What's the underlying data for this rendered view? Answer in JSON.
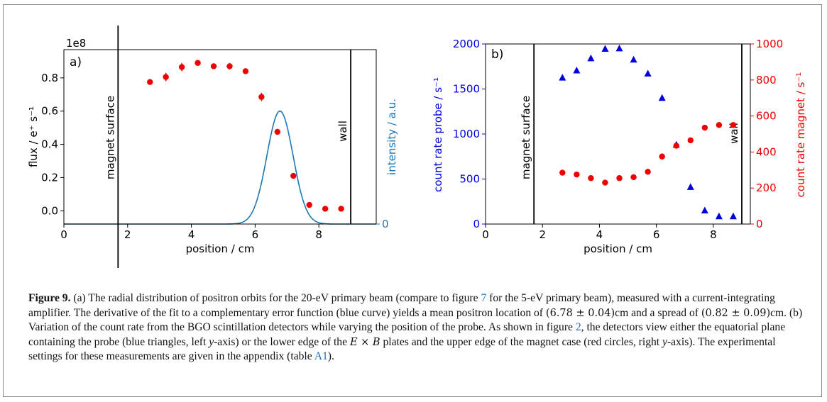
{
  "chart_data": [
    {
      "type": "scatter",
      "panel_label": "a)",
      "xlabel": "position / cm",
      "ylabel": "flux / e⁺ s⁻¹",
      "ylabel2": "intensity / a.u.",
      "y_offset_text": "1e8",
      "xlim": [
        0,
        9.8
      ],
      "ylim": [
        -0.08,
        0.97
      ],
      "x_ticks": [
        0,
        2,
        4,
        6,
        8
      ],
      "y_ticks": [
        0.0,
        0.2,
        0.4,
        0.6,
        0.8
      ],
      "y2_ticks": [
        0
      ],
      "vlines": [
        {
          "x": 1.7,
          "label": "magnet surface"
        },
        {
          "x": 9.0,
          "label": "wall"
        }
      ],
      "series": [
        {
          "marker": "circle",
          "color": "#ee0000",
          "x": [
            2.7,
            3.2,
            3.7,
            4.2,
            4.7,
            5.2,
            5.7,
            6.2,
            6.7,
            7.2,
            7.7,
            8.2,
            8.7
          ],
          "y": [
            0.775,
            0.805,
            0.865,
            0.89,
            0.87,
            0.87,
            0.84,
            0.685,
            0.475,
            0.21,
            0.035,
            0.012,
            0.012
          ],
          "yerr": [
            0.01,
            0.025,
            0.025,
            0.015,
            0.015,
            0.02,
            0.012,
            0.025,
            0.01,
            0.01,
            0.01,
            0.005,
            0.005
          ]
        },
        {
          "type": "line",
          "color": "#1f77b4",
          "mean": 6.78,
          "sigma": 0.41,
          "baseline": -0.08,
          "peak": 0.6
        }
      ]
    },
    {
      "type": "scatter",
      "panel_label": "b)",
      "xlabel": "position / cm",
      "ylabel": "count rate probe / s⁻¹",
      "ylabel2": "count rate magnet / s⁻¹",
      "xlim": [
        0,
        9.3
      ],
      "ylim": [
        0,
        2000
      ],
      "ylim2": [
        0,
        1000
      ],
      "x_ticks": [
        0,
        2,
        4,
        6,
        8
      ],
      "y_ticks": [
        0,
        500,
        1000,
        1500,
        2000
      ],
      "y2_ticks": [
        0,
        200,
        400,
        600,
        800,
        1000
      ],
      "vlines": [
        {
          "x": 1.7,
          "label": "magnet surface"
        },
        {
          "x": 9.0,
          "label": "wall"
        }
      ],
      "series": [
        {
          "axis": "left",
          "marker": "triangle",
          "color": "#0000dd",
          "x": [
            2.7,
            3.2,
            3.7,
            4.2,
            4.7,
            5.2,
            5.7,
            6.2,
            6.7,
            7.2,
            7.7,
            8.2,
            8.7
          ],
          "y": [
            1625,
            1705,
            1840,
            1945,
            1950,
            1825,
            1670,
            1400,
            880,
            410,
            150,
            85,
            85
          ]
        },
        {
          "axis": "right",
          "marker": "circle",
          "color": "#ee0000",
          "x": [
            2.7,
            3.2,
            3.7,
            4.2,
            4.7,
            5.2,
            5.7,
            6.2,
            6.7,
            7.2,
            7.7,
            8.2,
            8.7
          ],
          "y": [
            285,
            275,
            255,
            230,
            255,
            260,
            290,
            375,
            435,
            465,
            535,
            550,
            550
          ]
        }
      ]
    }
  ],
  "caption": {
    "label": "Figure 9.",
    "p1": " (a) The radial distribution of positron orbits for the 20-eV primary beam (compare to figure ",
    "ref1": "7",
    "p2": " for the 5-eV primary beam), measured with a current-integrating amplifier. The derivative of the fit to a complementary error function (blue curve) yields a mean positron location of ",
    "val1": "(6.78 ± 0.04)",
    "p3": "cm and a spread of ",
    "val2": "(0.82 ± 0.09)",
    "p4": "cm. (b) Variation of the count rate from the BGO scintillation detectors while varying the position of the probe. As shown in figure ",
    "ref2": "2",
    "p5": ", the detectors view either the equatorial plane containing the probe (blue triangles, left ",
    "yaxis1": "y",
    "p6": "-axis) or the lower edge of the ",
    "E": "E",
    "times": " × ",
    "B": "B",
    "p7": " plates and the upper edge of the magnet case (red circles, right ",
    "yaxis2": "y",
    "p8": "-axis). The experimental settings for these measurements are given in the appendix (table ",
    "ref3": "A1",
    "p9": ")."
  }
}
